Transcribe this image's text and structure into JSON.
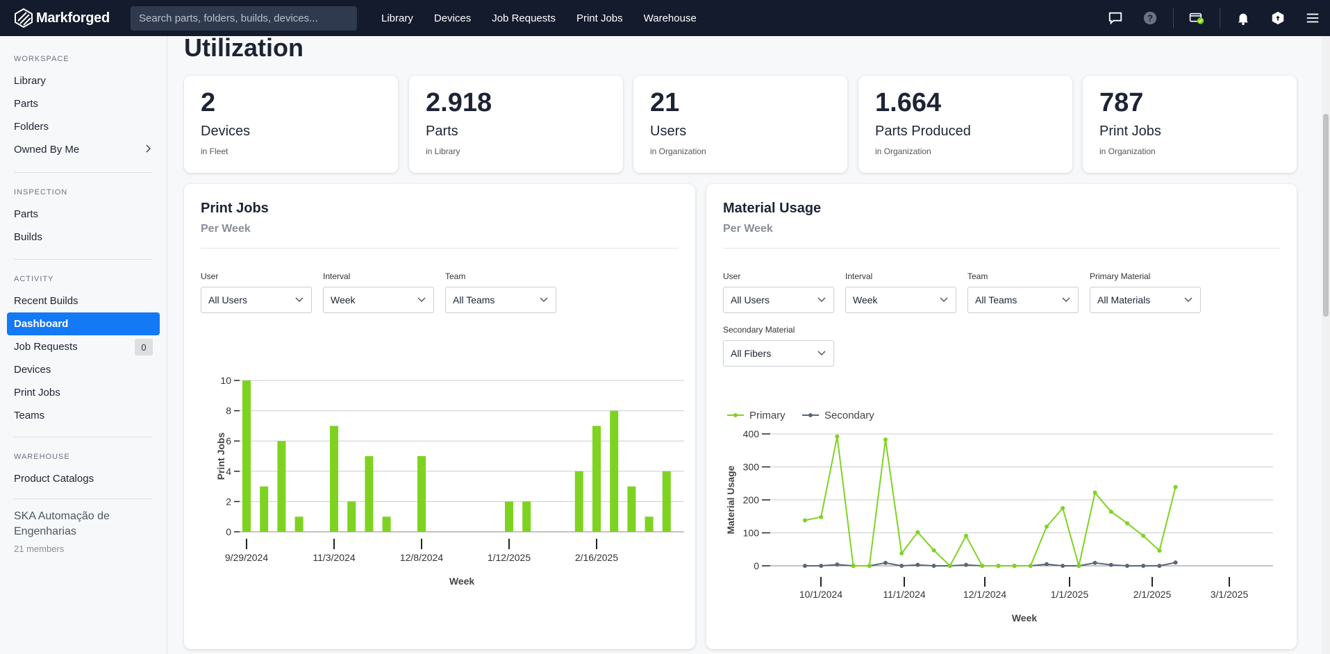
{
  "header": {
    "logo_text": "Markforged",
    "search_placeholder": "Search parts, folders, builds, devices...",
    "nav": [
      "Library",
      "Devices",
      "Job Requests",
      "Print Jobs",
      "Warehouse"
    ],
    "icons": [
      "chat-icon",
      "help-icon",
      "subscription-icon",
      "bell-icon",
      "hex-icon",
      "menu-icon"
    ]
  },
  "sidebar": {
    "sections": [
      {
        "title": "WORKSPACE",
        "items": [
          "Library",
          "Parts",
          "Folders",
          "Owned By Me"
        ]
      },
      {
        "title": "INSPECTION",
        "items": [
          "Parts",
          "Builds"
        ]
      },
      {
        "title": "ACTIVITY",
        "items": [
          "Recent Builds",
          "Dashboard",
          "Job Requests",
          "Devices",
          "Print Jobs",
          "Teams"
        ]
      },
      {
        "title": "WAREHOUSE",
        "items": [
          "Product Catalogs"
        ]
      }
    ],
    "active_item": "Dashboard",
    "job_requests_count": "0",
    "org_name": "SKA Automação de Engenharias",
    "org_members": "21 members"
  },
  "main": {
    "title": "Utilization",
    "stats": [
      {
        "value": "2",
        "label": "Devices",
        "sub": "in Fleet"
      },
      {
        "value": "2.918",
        "label": "Parts",
        "sub": "in Library"
      },
      {
        "value": "21",
        "label": "Users",
        "sub": "in Organization"
      },
      {
        "value": "1.664",
        "label": "Parts Produced",
        "sub": "in Organization"
      },
      {
        "value": "787",
        "label": "Print Jobs",
        "sub": "in Organization"
      }
    ],
    "print_jobs_panel": {
      "title": "Print Jobs",
      "subtitle": "Per Week",
      "filters": [
        {
          "label": "User",
          "value": "All Users"
        },
        {
          "label": "Interval",
          "value": "Week"
        },
        {
          "label": "Team",
          "value": "All Teams"
        }
      ]
    },
    "material_panel": {
      "title": "Material Usage",
      "subtitle": "Per Week",
      "filters": [
        {
          "label": "User",
          "value": "All Users"
        },
        {
          "label": "Interval",
          "value": "Week"
        },
        {
          "label": "Team",
          "value": "All Teams"
        },
        {
          "label": "Primary Material",
          "value": "All Materials"
        },
        {
          "label": "Secondary Material",
          "value": "All Fibers"
        }
      ]
    }
  },
  "chart_data": [
    {
      "type": "bar",
      "xlabel": "Week",
      "ylabel": "Print Jobs",
      "ylim": [
        0,
        10
      ],
      "yticks": [
        0,
        2,
        4,
        6,
        8,
        10
      ],
      "xtick_labels": [
        "9/29/2024",
        "11/3/2024",
        "12/8/2024",
        "1/12/2025",
        "2/16/2025"
      ],
      "color": "#7ed321",
      "values": [
        10,
        3,
        6,
        1,
        0,
        7,
        2,
        5,
        1,
        0,
        5,
        0,
        0,
        0,
        0,
        2,
        2,
        0,
        0,
        4,
        7,
        8,
        3,
        1,
        4
      ]
    },
    {
      "type": "line",
      "xlabel": "Week",
      "ylabel": "Material Usage",
      "ylim": [
        0,
        400
      ],
      "yticks": [
        0,
        100,
        200,
        300,
        400
      ],
      "xtick_labels": [
        "10/1/2024",
        "11/1/2024",
        "12/1/2024",
        "1/1/2025",
        "2/1/2025",
        "3/1/2025"
      ],
      "legend": "top-left",
      "series": [
        {
          "name": "Primary",
          "color": "#7ed321",
          "values": [
            138,
            148,
            392,
            0,
            0,
            383,
            38,
            102,
            47,
            0,
            91,
            0,
            0,
            0,
            0,
            119,
            175,
            0,
            222,
            164,
            129,
            91,
            46,
            239
          ]
        },
        {
          "name": "Secondary",
          "color": "#5c6677",
          "values": [
            0,
            0,
            4,
            0,
            0,
            9,
            0,
            3,
            0,
            0,
            3,
            0,
            0,
            0,
            0,
            5,
            0,
            0,
            9,
            3,
            0,
            0,
            0,
            10
          ]
        }
      ]
    }
  ]
}
